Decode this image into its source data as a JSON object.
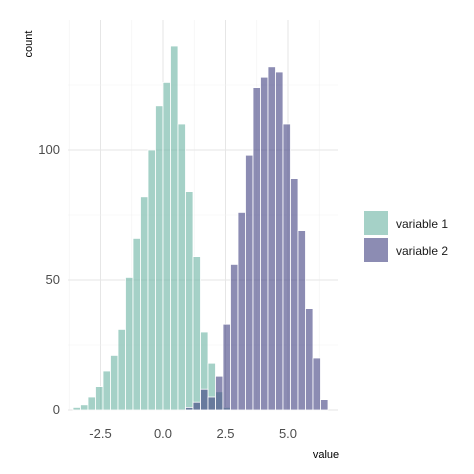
{
  "chart_data": {
    "type": "histogram",
    "title": "",
    "xlabel": "value",
    "ylabel": "count",
    "xlim": [
      -3.8,
      7.0
    ],
    "ylim": [
      0,
      150
    ],
    "x_ticks": [
      -2.5,
      0.0,
      2.5,
      5.0
    ],
    "x_tick_labels": [
      "-2.5",
      "0.0",
      "2.5",
      "5.0"
    ],
    "y_ticks": [
      0,
      50,
      100
    ],
    "y_tick_labels": [
      "0",
      "50",
      "100"
    ],
    "grid": true,
    "legend_position": "right",
    "bin_width": 0.3,
    "series": [
      {
        "name": "variable 1",
        "color": "#69b3a2",
        "bins_x": [
          -3.45,
          -3.15,
          -2.85,
          -2.55,
          -2.25,
          -1.95,
          -1.65,
          -1.35,
          -1.05,
          -0.75,
          -0.45,
          -0.15,
          0.15,
          0.45,
          0.75,
          1.05,
          1.35,
          1.65,
          1.95,
          2.25,
          2.55
        ],
        "counts": [
          1,
          2,
          5,
          9,
          15,
          21,
          31,
          51,
          66,
          82,
          100,
          117,
          126,
          140,
          110,
          84,
          59,
          30,
          18,
          7,
          1
        ]
      },
      {
        "name": "variable 2",
        "color": "#404080",
        "bins_x": [
          1.05,
          1.35,
          1.65,
          1.95,
          2.25,
          2.55,
          2.85,
          3.15,
          3.45,
          3.75,
          4.05,
          4.35,
          4.65,
          4.95,
          5.25,
          5.55,
          5.85,
          6.15,
          6.45
        ],
        "counts": [
          1,
          3,
          8,
          5,
          13,
          33,
          56,
          76,
          98,
          124,
          128,
          132,
          130,
          110,
          89,
          69,
          39,
          20,
          4
        ]
      }
    ]
  }
}
